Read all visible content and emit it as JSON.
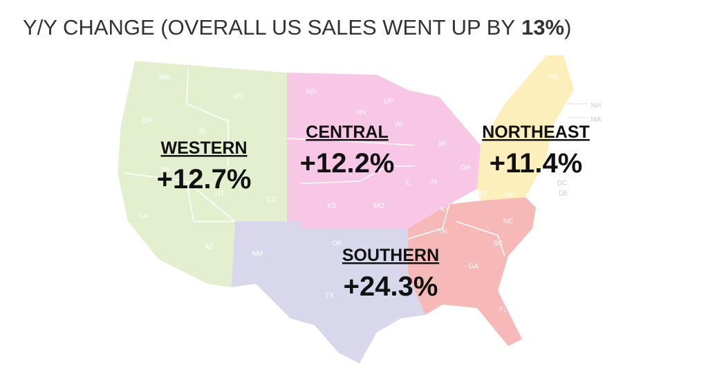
{
  "title": {
    "text": "Y/Y CHANGE (OVERALL US SALES WENT UP BY",
    "emphasis": "13%",
    "closing": ")"
  },
  "regions": [
    {
      "name": "WESTERN",
      "change": "+12.7%"
    },
    {
      "name": "CENTRAL",
      "change": "+12.2%"
    },
    {
      "name": "NORTHEAST",
      "change": "+11.4%"
    },
    {
      "name": "SOUTHERN",
      "change": "+24.3%"
    }
  ],
  "state_labels": [
    "WA",
    "MT",
    "OR",
    "ID",
    "WY",
    "NV",
    "UT",
    "CO",
    "CA",
    "AZ",
    "NM",
    "ND",
    "MN",
    "UP",
    "WI",
    "MI",
    "IL",
    "IN",
    "OH",
    "KS",
    "MO",
    "OK",
    "TX",
    "KY",
    "TN",
    "NC",
    "SC",
    "GA",
    "FL",
    "VT",
    "ME",
    "NH",
    "MA",
    "DC",
    "DE",
    "WV",
    "VA"
  ]
}
